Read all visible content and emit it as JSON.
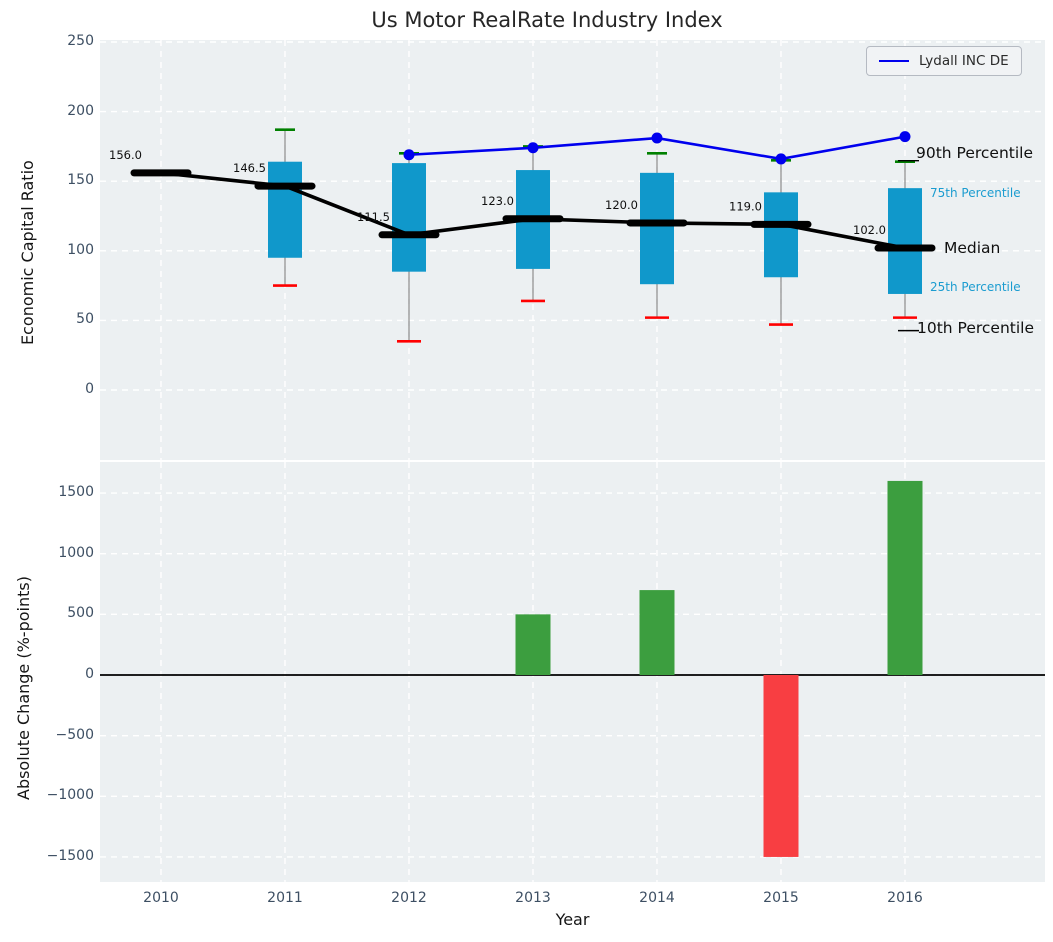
{
  "figure": {
    "title": "Us Motor RealRate Industry Index",
    "background": "#ffffff",
    "plot_background": "#ECF0F2",
    "grid_color": "#ffffff",
    "tick_color": "#3D4F63",
    "box_color": "#1098CB",
    "percentile_text_color": "#1B9CD0",
    "median_color": "#000000",
    "company_line_color": "#0000ee",
    "whisker_color": "#8a8a8a",
    "p90_cap_color": "#008000",
    "p10_cap_color": "#ff0000",
    "bar_positive_color": "#3C9E3F",
    "bar_negative_color": "#F83E42"
  },
  "legend": {
    "label": "Lydall INC DE"
  },
  "annotations": {
    "p90": "90th Percentile",
    "p75": "75th Percentile",
    "median": "Median",
    "p25": "25th Percentile",
    "p10": "10th Percentile"
  },
  "chart_data": [
    {
      "type": "boxplot+line",
      "title": "Us Motor RealRate Industry Index",
      "xlabel": "Year",
      "ylabel": "Economic Capital Ratio",
      "ylim": [
        -50,
        252
      ],
      "grid": true,
      "y_ticks": [
        {
          "v": 0,
          "label": "0"
        },
        {
          "v": 50,
          "label": "50"
        },
        {
          "v": 100,
          "label": "100"
        },
        {
          "v": 150,
          "label": "150"
        },
        {
          "v": 200,
          "label": "200"
        },
        {
          "v": 250,
          "label": "250"
        }
      ],
      "categories": [
        "2010",
        "2011",
        "2012",
        "2013",
        "2014",
        "2015",
        "2016"
      ],
      "boxes": [
        {
          "year": "2010",
          "p10": null,
          "p25": null,
          "median": 156.0,
          "p75": null,
          "p90": null,
          "label": "156.0"
        },
        {
          "year": "2011",
          "p10": 75,
          "p25": 95,
          "median": 146.5,
          "p75": 164,
          "p90": 187,
          "label": "146.5"
        },
        {
          "year": "2012",
          "p10": 35,
          "p25": 85,
          "median": 111.5,
          "p75": 163,
          "p90": 170,
          "label": "111.5"
        },
        {
          "year": "2013",
          "p10": 64,
          "p25": 87,
          "median": 123.0,
          "p75": 158,
          "p90": 175,
          "label": "123.0"
        },
        {
          "year": "2014",
          "p10": 52,
          "p25": 76,
          "median": 120.0,
          "p75": 156,
          "p90": 170,
          "label": "120.0"
        },
        {
          "year": "2015",
          "p10": 47,
          "p25": 81,
          "median": 119.0,
          "p75": 142,
          "p90": 165,
          "label": "119.0"
        },
        {
          "year": "2016",
          "p10": 52,
          "p25": 69,
          "median": 102.0,
          "p75": 145,
          "p90": 164,
          "label": "102.0"
        }
      ],
      "series": [
        {
          "name": "Lydall INC DE",
          "x": [
            "2012",
            "2013",
            "2014",
            "2015",
            "2016"
          ],
          "values": [
            169,
            174,
            181,
            166,
            182
          ]
        }
      ],
      "legend_position": "upper right"
    },
    {
      "type": "bar",
      "xlabel": "Year",
      "ylabel": "Absolute Change (%-points)",
      "ylim": [
        -1700,
        1760
      ],
      "grid": true,
      "y_ticks": [
        {
          "v": 1500,
          "label": "1500"
        },
        {
          "v": 1000,
          "label": "1000"
        },
        {
          "v": 500,
          "label": "500"
        },
        {
          "v": 0,
          "label": "0"
        },
        {
          "v": -500,
          "label": "−500"
        },
        {
          "v": -1000,
          "label": "−1000"
        },
        {
          "v": -1500,
          "label": "−1500"
        }
      ],
      "categories": [
        "2010",
        "2011",
        "2012",
        "2013",
        "2014",
        "2015",
        "2016"
      ],
      "values": [
        null,
        null,
        null,
        500,
        700,
        -1500,
        1600
      ]
    }
  ]
}
